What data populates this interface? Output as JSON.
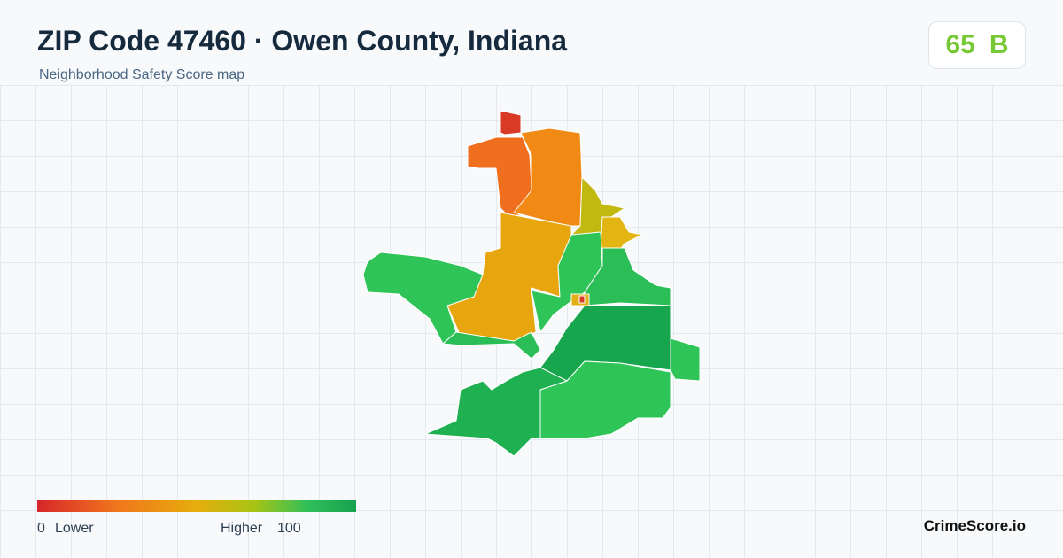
{
  "header": {
    "title": "ZIP Code 47460 · Owen County, Indiana",
    "subtitle": "Neighborhood Safety Score map"
  },
  "score": {
    "value": 65,
    "grade": "B"
  },
  "legend": {
    "min": 0,
    "min_label": "Lower",
    "max_label": "Higher",
    "max": 100
  },
  "brand": "CrimeScore.io"
}
